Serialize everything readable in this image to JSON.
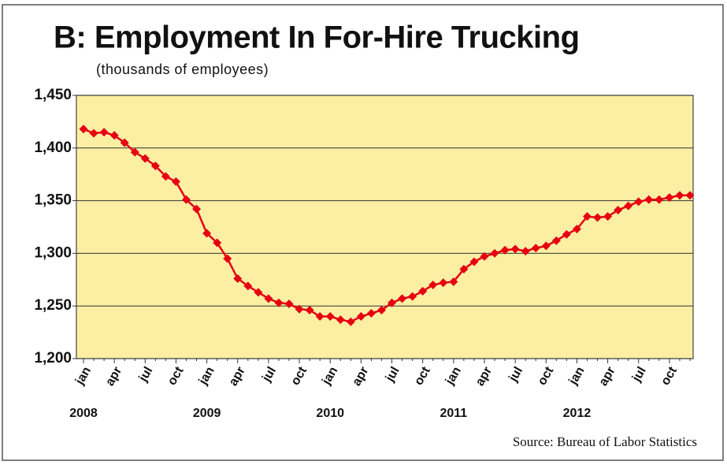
{
  "chart_data": {
    "type": "line",
    "title": "B: Employment  In For-Hire Trucking",
    "subtitle": "(thousands of employees)",
    "source": "Source: Bureau of Labor Statistics",
    "categories": [
      "jan",
      null,
      null,
      "apr",
      null,
      null,
      "jul",
      null,
      null,
      "oct",
      null,
      null,
      "jan",
      null,
      null,
      "apr",
      null,
      null,
      "jul",
      null,
      null,
      "oct",
      null,
      null,
      "jan",
      null,
      null,
      "apr",
      null,
      null,
      "jul",
      null,
      null,
      "oct",
      null,
      null,
      "jan",
      null,
      null,
      "apr",
      null,
      null,
      "jul",
      null,
      null,
      "oct",
      null,
      null,
      "jan",
      null,
      null,
      "apr",
      null,
      null,
      "jul",
      null,
      null,
      "oct",
      null,
      null
    ],
    "years": [
      "2008",
      "2009",
      "2010",
      "2011",
      "2012"
    ],
    "values": [
      1418,
      1414,
      1415,
      1412,
      1405,
      1396,
      1390,
      1383,
      1373,
      1368,
      1351,
      1342,
      1319,
      1310,
      1295,
      1276,
      1269,
      1263,
      1257,
      1253,
      1252,
      1247,
      1246,
      1240,
      1240,
      1237,
      1235,
      1240,
      1243,
      1246,
      1253,
      1257,
      1259,
      1264,
      1270,
      1272,
      1273,
      1285,
      1292,
      1297,
      1300,
      1303,
      1304,
      1302,
      1305,
      1307,
      1312,
      1318,
      1323,
      1335,
      1334,
      1335,
      1341,
      1345,
      1349,
      1351,
      1351,
      1353,
      1355,
      1355
    ],
    "color": "#e60012",
    "ylim": [
      1200,
      1450
    ],
    "yticks": [
      {
        "value": 1200,
        "label": "1,200"
      },
      {
        "value": 1250,
        "label": "1,250"
      },
      {
        "value": 1300,
        "label": "1,300"
      },
      {
        "value": 1350,
        "label": "1,350"
      },
      {
        "value": 1400,
        "label": "1,400"
      },
      {
        "value": 1450,
        "label": "1,450"
      }
    ],
    "grid": true
  }
}
